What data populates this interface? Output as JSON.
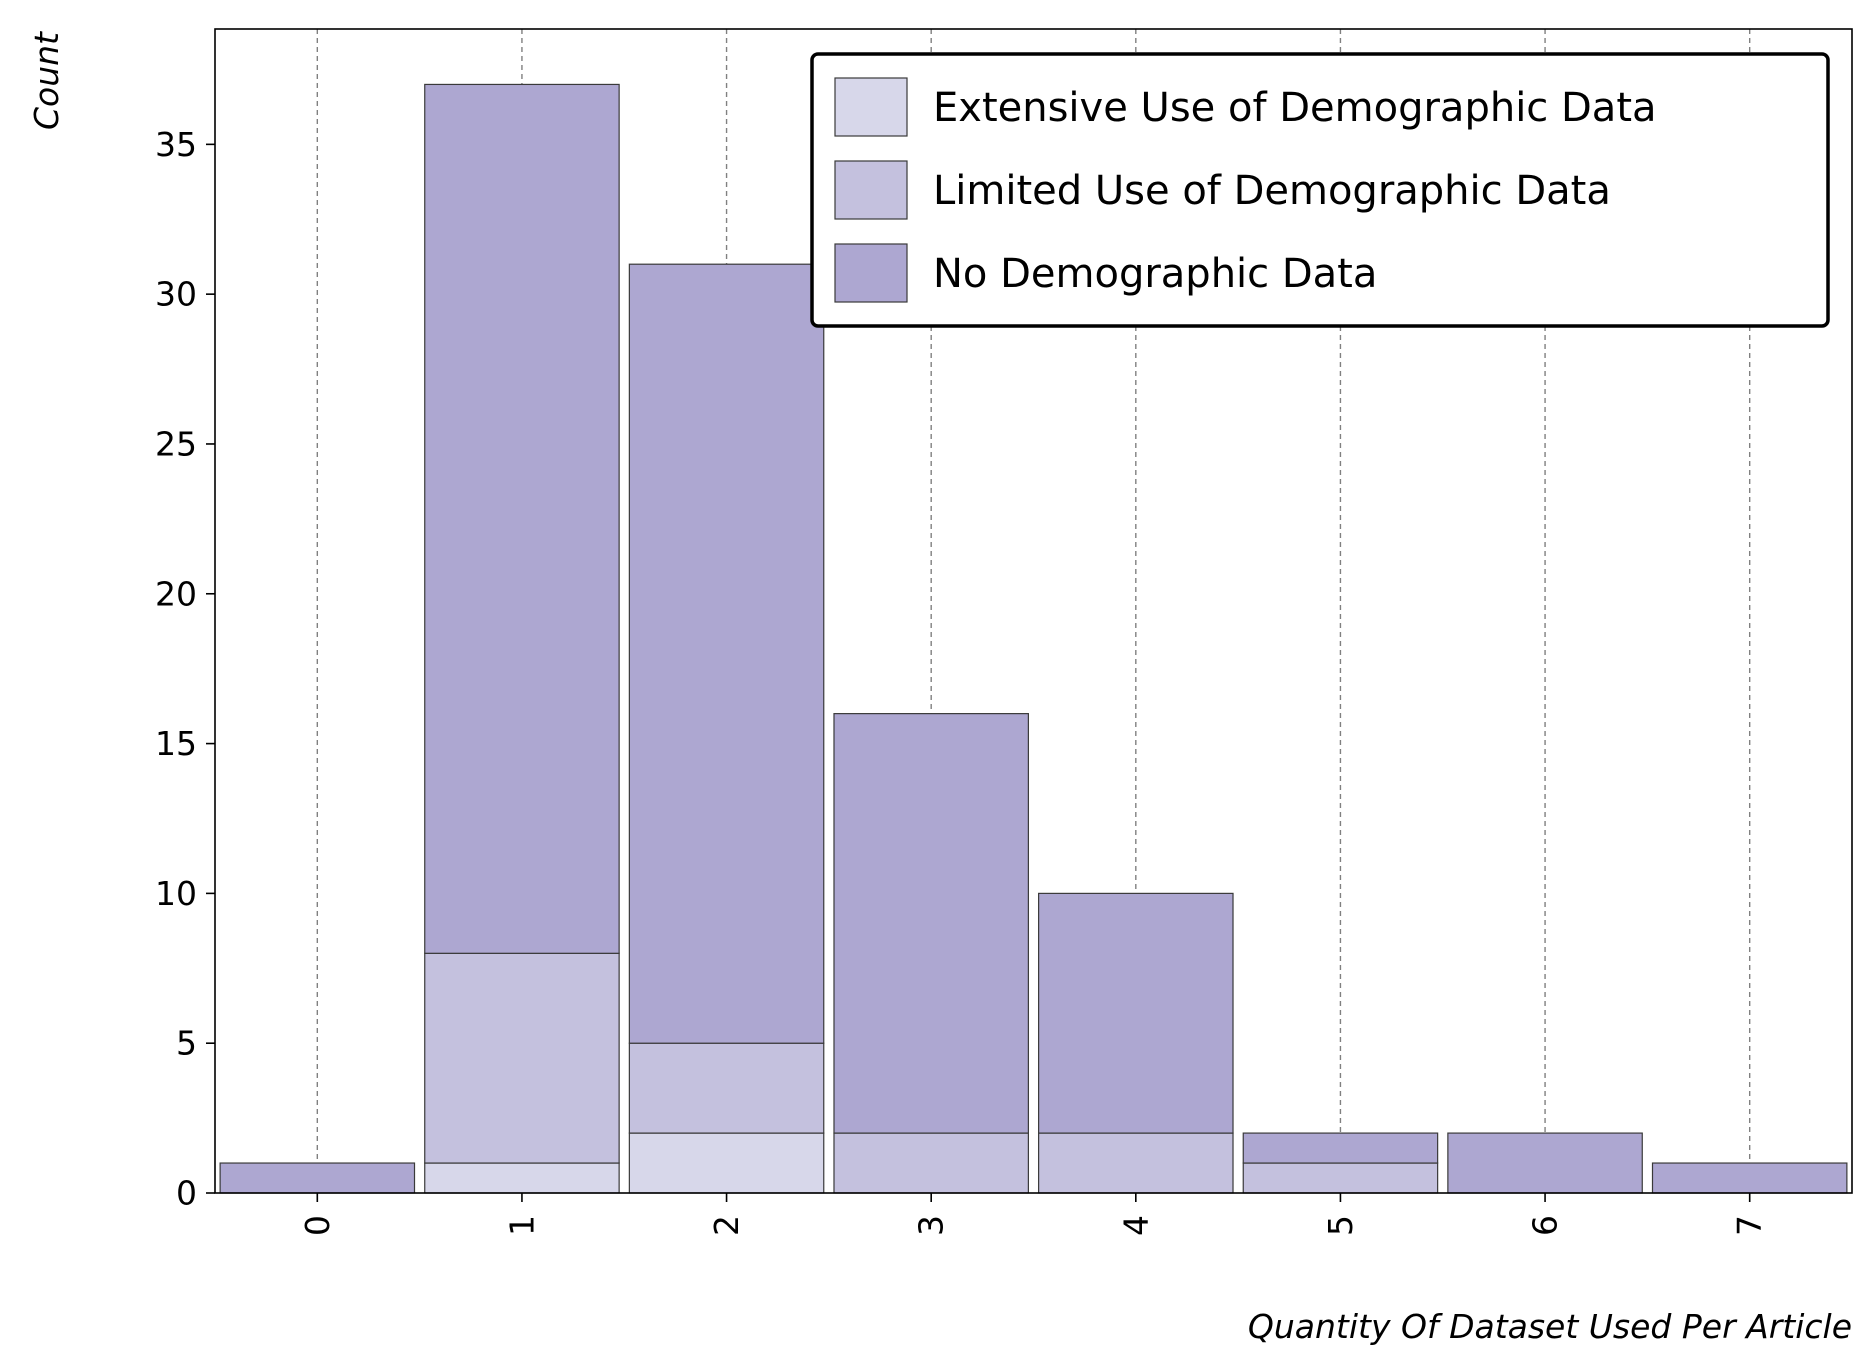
{
  "chart_data": {
    "type": "bar",
    "stacked": true,
    "title": "",
    "xlabel": "Quantity Of Dataset Used Per Article",
    "ylabel": "Count",
    "categories": [
      "0",
      "1",
      "2",
      "3",
      "4",
      "5",
      "6",
      "7"
    ],
    "series": [
      {
        "name": "Extensive Use of Demographic Data",
        "color": "#d7d7ea",
        "values": [
          0,
          1,
          2,
          0,
          0,
          0,
          0,
          0
        ]
      },
      {
        "name": "Limited Use of Demographic Data",
        "color": "#c4c1de",
        "values": [
          0,
          7,
          3,
          2,
          2,
          1,
          0,
          0
        ]
      },
      {
        "name": "No Demographic Data",
        "color": "#ada7d1",
        "values": [
          1,
          29,
          26,
          14,
          8,
          1,
          2,
          1
        ]
      }
    ],
    "ylim": [
      0,
      38.85
    ],
    "yticks": [
      0,
      5,
      10,
      15,
      20,
      25,
      30,
      35
    ],
    "xtick_rotation": 90,
    "grid": "vertical-dashed",
    "legend_position": "top-right"
  }
}
